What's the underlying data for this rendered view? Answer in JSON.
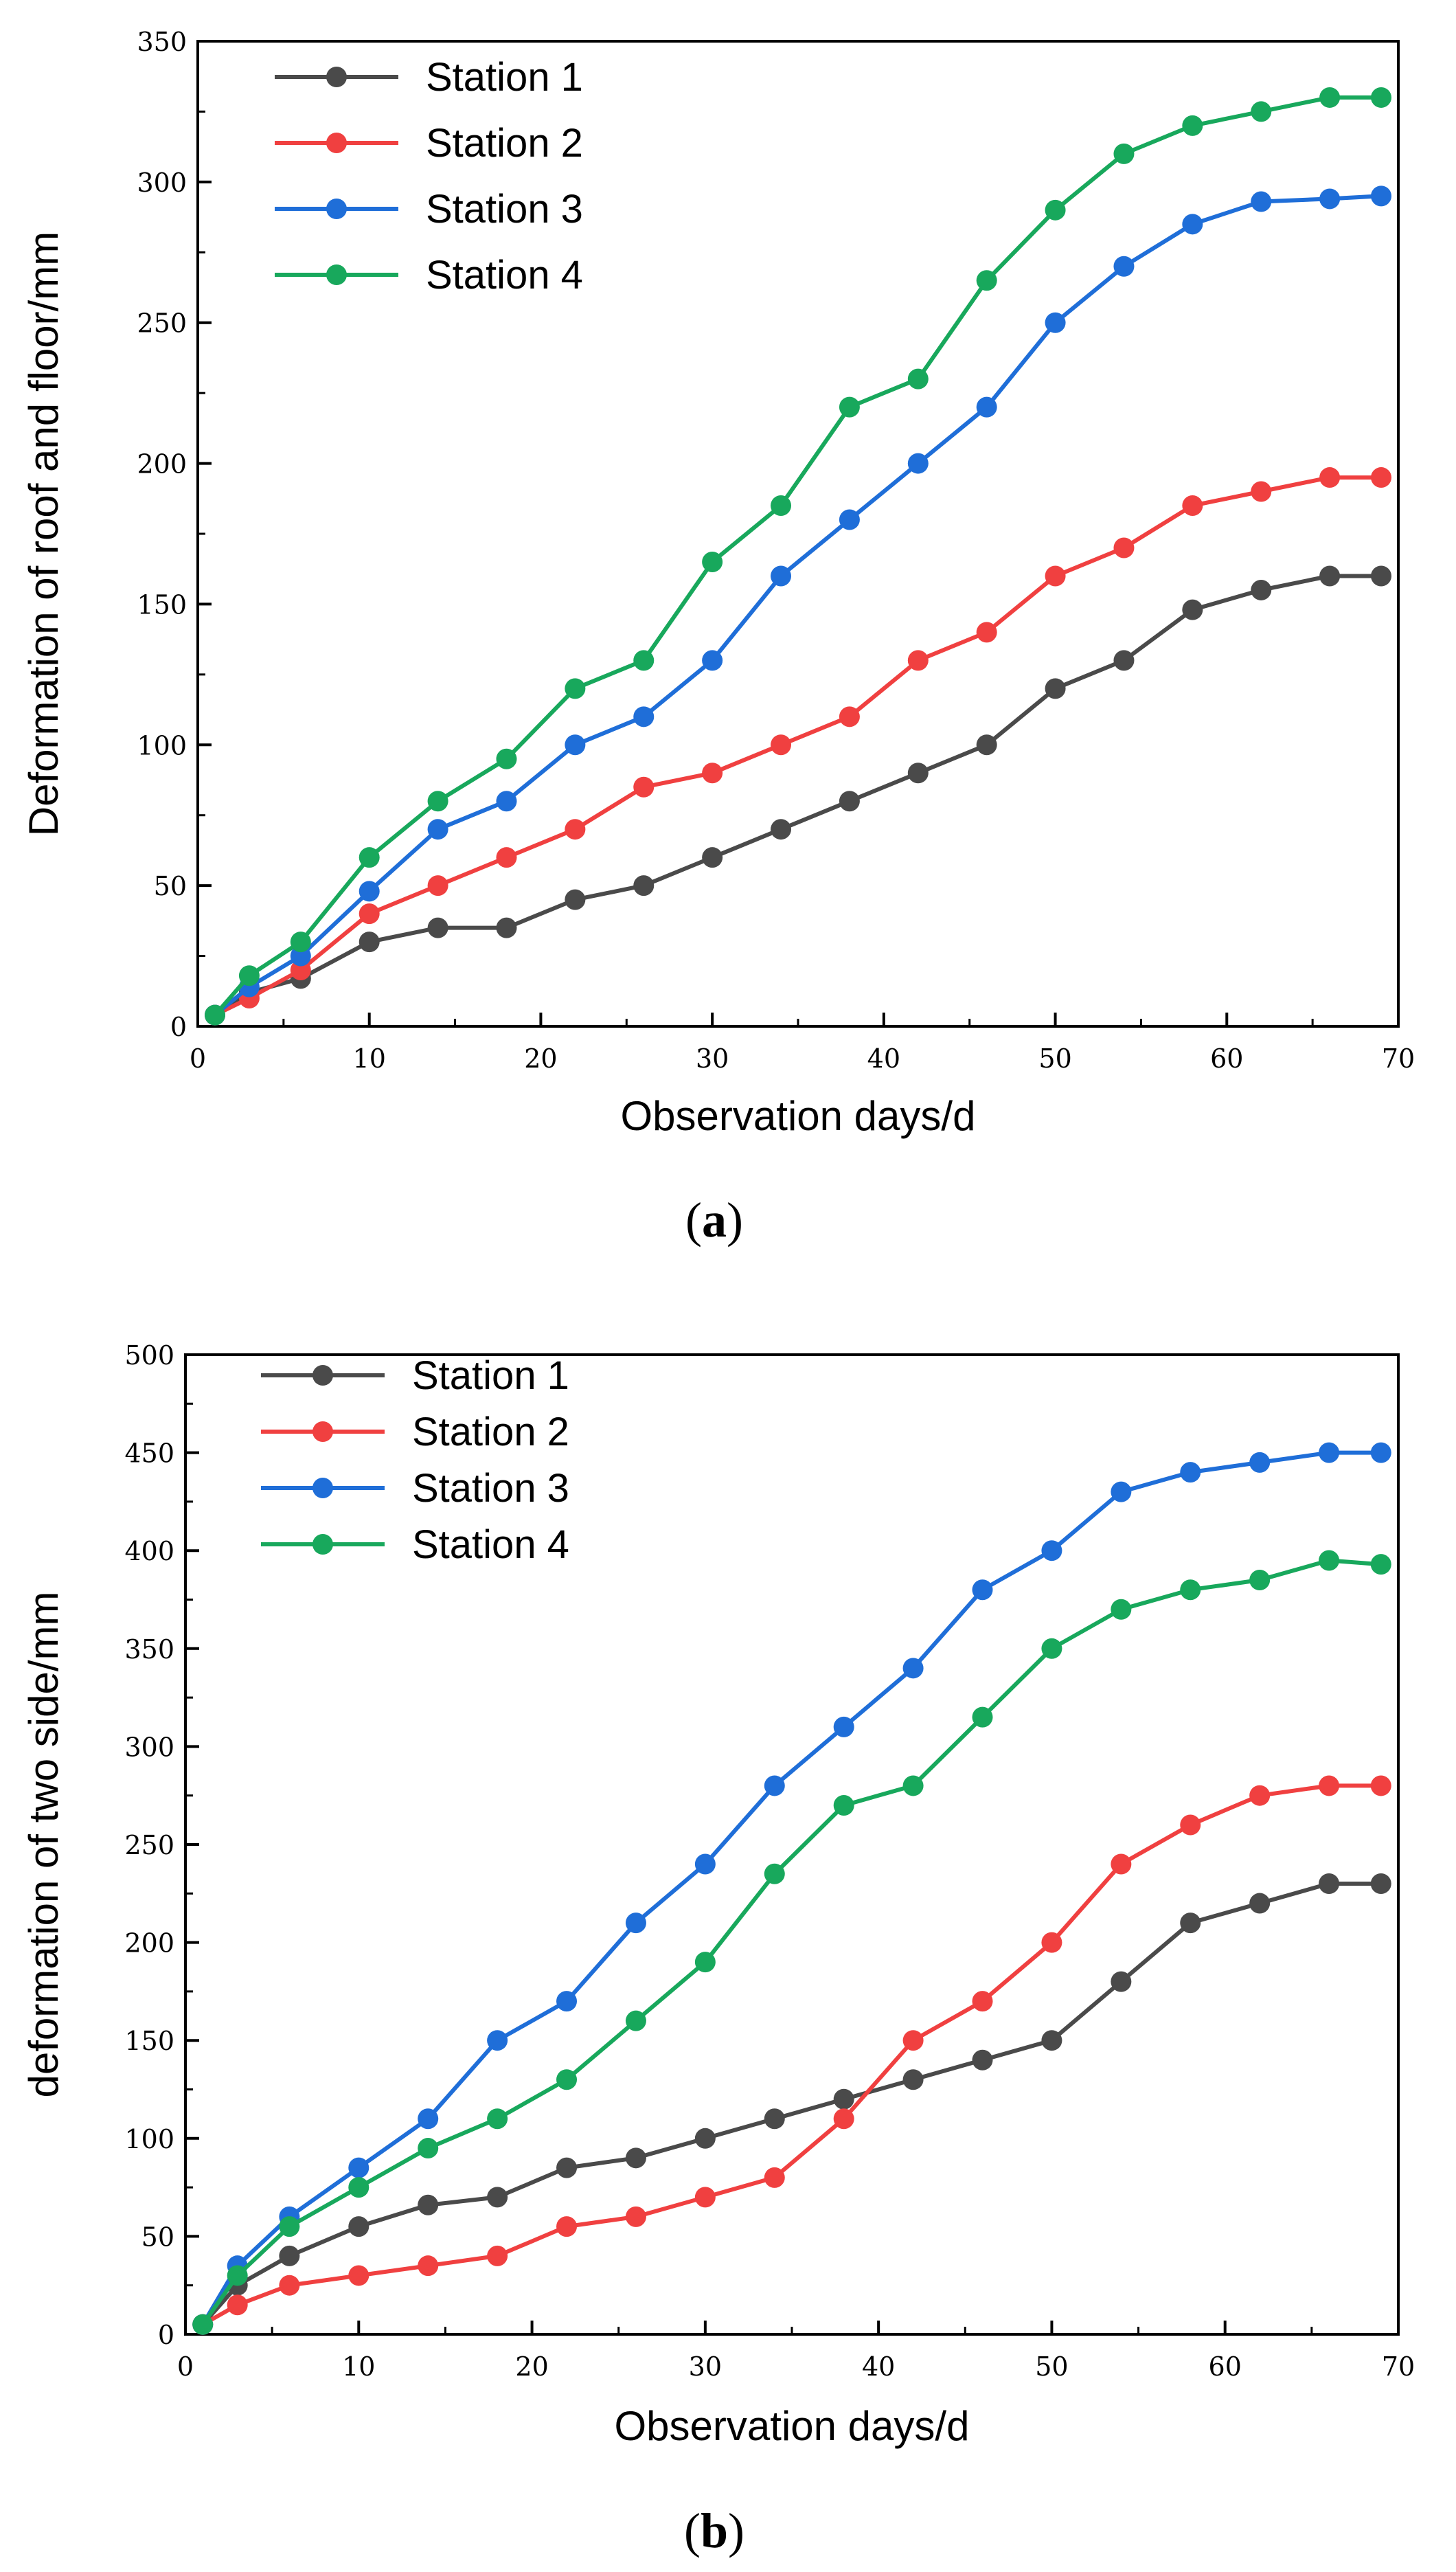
{
  "figure": {
    "panels": [
      {
        "caption_open": "(",
        "caption_letter": "a",
        "caption_close": ")"
      },
      {
        "caption_open": "(",
        "caption_letter": "b",
        "caption_close": ")"
      }
    ]
  },
  "chart_data": [
    {
      "type": "line",
      "title": "",
      "xlabel": "Observation days/d",
      "ylabel": "Deformation of roof and floor/mm",
      "xlim": [
        0,
        70
      ],
      "ylim": [
        0,
        350
      ],
      "xticks": [
        0,
        10,
        20,
        30,
        40,
        50,
        60,
        70
      ],
      "yticks": [
        0,
        50,
        100,
        150,
        200,
        250,
        300,
        350
      ],
      "grid": false,
      "legend_position": "top-left",
      "x": [
        1,
        3,
        6,
        10,
        14,
        18,
        22,
        26,
        30,
        34,
        38,
        42,
        46,
        50,
        54,
        58,
        62,
        66,
        69
      ],
      "series": [
        {
          "name": "Station 1",
          "color": "#4a4a4a",
          "values": [
            4,
            12,
            17,
            30,
            35,
            35,
            45,
            50,
            60,
            70,
            80,
            90,
            100,
            120,
            130,
            148,
            155,
            160,
            160
          ]
        },
        {
          "name": "Station 2",
          "color": "#f04040",
          "values": [
            4,
            10,
            20,
            40,
            50,
            60,
            70,
            85,
            90,
            100,
            110,
            130,
            140,
            160,
            170,
            185,
            190,
            195,
            195
          ]
        },
        {
          "name": "Station 3",
          "color": "#1f6ed8",
          "values": [
            4,
            14,
            25,
            48,
            70,
            80,
            100,
            110,
            130,
            160,
            180,
            200,
            220,
            250,
            270,
            285,
            293,
            294,
            295
          ]
        },
        {
          "name": "Station 4",
          "color": "#18a85c",
          "values": [
            4,
            18,
            30,
            60,
            80,
            95,
            120,
            130,
            165,
            185,
            220,
            230,
            265,
            290,
            310,
            320,
            325,
            330,
            330
          ]
        }
      ]
    },
    {
      "type": "line",
      "title": "",
      "xlabel": "Observation days/d",
      "ylabel": "deformation of two side/mm",
      "xlim": [
        0,
        70
      ],
      "ylim": [
        0,
        500
      ],
      "xticks": [
        0,
        10,
        20,
        30,
        40,
        50,
        60,
        70
      ],
      "yticks": [
        0,
        50,
        100,
        150,
        200,
        250,
        300,
        350,
        400,
        450,
        500
      ],
      "grid": false,
      "legend_position": "top-left",
      "x": [
        1,
        3,
        6,
        10,
        14,
        18,
        22,
        26,
        30,
        34,
        38,
        42,
        46,
        50,
        54,
        58,
        62,
        66,
        69
      ],
      "series": [
        {
          "name": "Station 1",
          "color": "#4a4a4a",
          "values": [
            5,
            25,
            40,
            55,
            66,
            70,
            85,
            90,
            100,
            110,
            120,
            130,
            140,
            150,
            180,
            210,
            220,
            230,
            230
          ]
        },
        {
          "name": "Station 2",
          "color": "#f04040",
          "values": [
            5,
            15,
            25,
            30,
            35,
            40,
            55,
            60,
            70,
            80,
            110,
            150,
            170,
            200,
            240,
            260,
            275,
            280,
            280
          ]
        },
        {
          "name": "Station 3",
          "color": "#1f6ed8",
          "values": [
            5,
            35,
            60,
            85,
            110,
            150,
            170,
            210,
            240,
            280,
            310,
            340,
            380,
            400,
            430,
            440,
            445,
            450,
            450
          ]
        },
        {
          "name": "Station 4",
          "color": "#18a85c",
          "values": [
            5,
            30,
            55,
            75,
            95,
            110,
            130,
            160,
            190,
            235,
            270,
            280,
            315,
            350,
            370,
            380,
            385,
            395,
            393
          ]
        }
      ]
    }
  ]
}
